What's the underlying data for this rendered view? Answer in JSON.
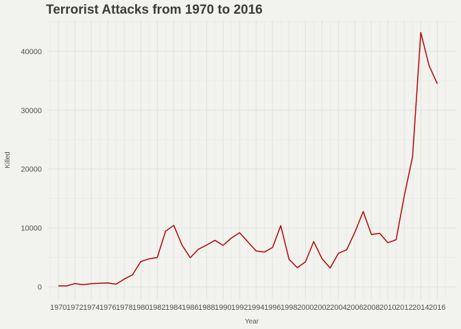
{
  "chart_data": {
    "type": "line",
    "title": "Terrorist Attacks from 1970 to 2016",
    "xlabel": "Year",
    "ylabel": "Killed",
    "xlim": [
      1968.65,
      2018.3
    ],
    "ylim": [
      -2150,
      45230
    ],
    "x_ticks": [
      "1970",
      "1972",
      "1974",
      "1976",
      "1978",
      "1980",
      "1982",
      "1984",
      "1986",
      "1988",
      "1990",
      "1992",
      "1994",
      "1996",
      "1998",
      "2000",
      "2002",
      "2004",
      "2006",
      "2008",
      "2010",
      "2012",
      "2014",
      "2016"
    ],
    "y_ticks": [
      "0",
      "10000",
      "20000",
      "30000",
      "40000"
    ],
    "grid": true,
    "legend": "none",
    "series": [
      {
        "color": "#b00000",
        "x": [
          1970,
          1971,
          1972,
          1973,
          1974,
          1975,
          1976,
          1977,
          1978,
          1979,
          1980,
          1981,
          1982,
          1983,
          1984,
          1985,
          1986,
          1987,
          1988,
          1989,
          1990,
          1991,
          1992,
          1994,
          1995,
          1996,
          1997,
          1998,
          1999,
          2000,
          2001,
          2002,
          2003,
          2004,
          2005,
          2006,
          2007,
          2008,
          2009,
          2010,
          2011,
          2012,
          2013,
          2014,
          2015,
          2016
        ],
        "y": [
          170,
          170,
          560,
          370,
          540,
          620,
          680,
          460,
          1330,
          2050,
          4300,
          4750,
          5000,
          9450,
          10450,
          7100,
          4950,
          6400,
          7100,
          7900,
          7050,
          8300,
          9200,
          6100,
          5900,
          6700,
          10400,
          4700,
          3250,
          4250,
          7700,
          4800,
          3200,
          5700,
          6300,
          9300,
          12800,
          8900,
          9100,
          7500,
          8000,
          15500,
          22100,
          43200,
          37600,
          34500
        ]
      }
    ]
  }
}
